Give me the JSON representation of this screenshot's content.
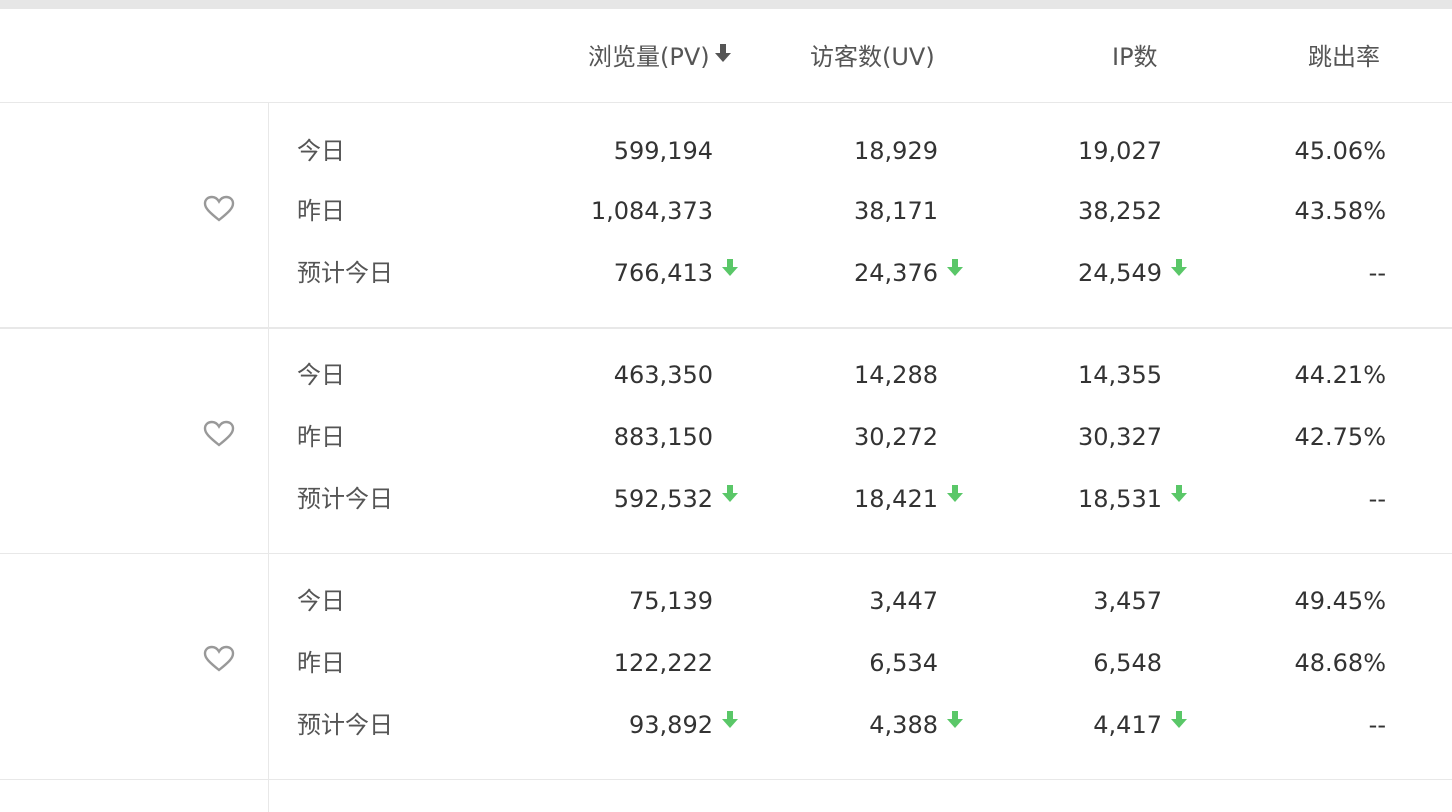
{
  "header": {
    "pv_label": "浏览量(PV)",
    "uv_label": "访客数(UV)",
    "ip_label": "IP数",
    "bounce_label": "跳出率",
    "sort_icon": "sort-desc-icon"
  },
  "row_labels": {
    "today": "今日",
    "yesterday": "昨日",
    "forecast": "预计今日"
  },
  "colors": {
    "down_arrow": "#5ac768",
    "heart": "#999999",
    "sort_arrow": "#555555"
  },
  "groups": [
    {
      "today": {
        "pv": "599,194",
        "uv": "18,929",
        "ip": "19,027",
        "bounce": "45.06%"
      },
      "yesterday": {
        "pv": "1,084,373",
        "uv": "38,171",
        "ip": "38,252",
        "bounce": "43.58%"
      },
      "forecast": {
        "pv": "766,413",
        "uv": "24,376",
        "ip": "24,549",
        "bounce": "--"
      }
    },
    {
      "today": {
        "pv": "463,350",
        "uv": "14,288",
        "ip": "14,355",
        "bounce": "44.21%"
      },
      "yesterday": {
        "pv": "883,150",
        "uv": "30,272",
        "ip": "30,327",
        "bounce": "42.75%"
      },
      "forecast": {
        "pv": "592,532",
        "uv": "18,421",
        "ip": "18,531",
        "bounce": "--"
      }
    },
    {
      "today": {
        "pv": "75,139",
        "uv": "3,447",
        "ip": "3,457",
        "bounce": "49.45%"
      },
      "yesterday": {
        "pv": "122,222",
        "uv": "6,534",
        "ip": "6,548",
        "bounce": "48.68%"
      },
      "forecast": {
        "pv": "93,892",
        "uv": "4,388",
        "ip": "4,417",
        "bounce": "--"
      }
    }
  ]
}
